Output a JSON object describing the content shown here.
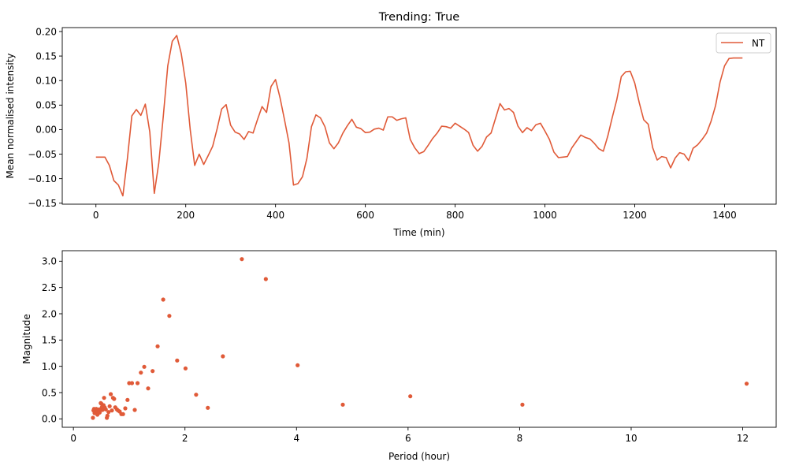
{
  "chart_data": [
    {
      "type": "line",
      "title": "Trending: True",
      "xlabel": "Time (min)",
      "ylabel": "Mean normalised intensity",
      "xlim": [
        -75,
        1515
      ],
      "ylim": [
        -0.152,
        0.208
      ],
      "xticks": [
        0,
        200,
        400,
        600,
        800,
        1000,
        1200,
        1400
      ],
      "yticks": [
        -0.15,
        -0.1,
        -0.05,
        0.0,
        0.05,
        0.1,
        0.15,
        0.2
      ],
      "ytick_labels": [
        "−0.15",
        "−0.10",
        "−0.05",
        "0.00",
        "0.05",
        "0.10",
        "0.15",
        "0.20"
      ],
      "legend": "upper right",
      "series": [
        {
          "name": "NT",
          "color": "#e05a38",
          "x": [
            0,
            10,
            20,
            30,
            40,
            50,
            60,
            70,
            80,
            90,
            100,
            110,
            120,
            130,
            140,
            150,
            160,
            170,
            180,
            190,
            200,
            210,
            220,
            230,
            240,
            250,
            260,
            270,
            280,
            290,
            300,
            310,
            320,
            330,
            340,
            350,
            360,
            370,
            380,
            390,
            400,
            410,
            420,
            430,
            440,
            450,
            460,
            470,
            480,
            490,
            500,
            510,
            520,
            530,
            540,
            550,
            560,
            570,
            580,
            590,
            600,
            610,
            620,
            630,
            640,
            650,
            660,
            670,
            680,
            690,
            700,
            710,
            720,
            730,
            740,
            750,
            760,
            770,
            780,
            790,
            800,
            810,
            820,
            830,
            840,
            850,
            860,
            870,
            880,
            890,
            900,
            910,
            920,
            930,
            940,
            950,
            960,
            970,
            980,
            990,
            1000,
            1010,
            1020,
            1030,
            1040,
            1050,
            1060,
            1070,
            1080,
            1090,
            1100,
            1110,
            1120,
            1130,
            1140,
            1150,
            1160,
            1170,
            1180,
            1190,
            1200,
            1210,
            1220,
            1230,
            1240,
            1250,
            1260,
            1270,
            1280,
            1290,
            1300,
            1310,
            1320,
            1330,
            1340,
            1350,
            1360,
            1370,
            1380,
            1390,
            1400,
            1410,
            1420,
            1430,
            1440
          ],
          "y": [
            -0.056,
            -0.056,
            -0.056,
            -0.073,
            -0.104,
            -0.113,
            -0.135,
            -0.06,
            0.028,
            0.041,
            0.029,
            0.052,
            -0.005,
            -0.13,
            -0.068,
            0.027,
            0.13,
            0.18,
            0.192,
            0.155,
            0.095,
            0.0,
            -0.073,
            -0.05,
            -0.071,
            -0.053,
            -0.034,
            0.002,
            0.042,
            0.051,
            0.009,
            -0.005,
            -0.009,
            -0.02,
            -0.004,
            -0.007,
            0.021,
            0.047,
            0.035,
            0.088,
            0.102,
            0.065,
            0.02,
            -0.027,
            -0.113,
            -0.11,
            -0.096,
            -0.058,
            0.006,
            0.03,
            0.024,
            0.006,
            -0.027,
            -0.039,
            -0.027,
            -0.007,
            0.008,
            0.021,
            0.005,
            0.002,
            -0.006,
            -0.005,
            0.001,
            0.003,
            -0.001,
            0.026,
            0.026,
            0.019,
            0.022,
            0.024,
            -0.02,
            -0.037,
            -0.049,
            -0.045,
            -0.032,
            -0.018,
            -0.007,
            0.007,
            0.006,
            0.003,
            0.013,
            0.007,
            0.001,
            -0.006,
            -0.032,
            -0.044,
            -0.034,
            -0.015,
            -0.007,
            0.023,
            0.053,
            0.04,
            0.043,
            0.035,
            0.007,
            -0.006,
            0.004,
            -0.002,
            0.01,
            0.013,
            -0.003,
            -0.02,
            -0.046,
            -0.057,
            -0.056,
            -0.055,
            -0.037,
            -0.024,
            -0.011,
            -0.016,
            -0.019,
            -0.028,
            -0.039,
            -0.044,
            -0.013,
            0.025,
            0.061,
            0.108,
            0.118,
            0.119,
            0.095,
            0.055,
            0.02,
            0.011,
            -0.037,
            -0.062,
            -0.055,
            -0.057,
            -0.078,
            -0.058,
            -0.047,
            -0.05,
            -0.063,
            -0.038,
            -0.031,
            -0.02,
            -0.007,
            0.017,
            0.049,
            0.097,
            0.13,
            0.145,
            0.146,
            0.146,
            0.146
          ]
        }
      ]
    },
    {
      "type": "scatter",
      "title": "",
      "xlabel": "Period (hour)",
      "ylabel": "Magnitude",
      "xlim": [
        -0.2,
        12.6
      ],
      "ylim": [
        -0.16,
        3.2
      ],
      "xticks": [
        0,
        2,
        4,
        6,
        8,
        10,
        12
      ],
      "yticks": [
        0.0,
        0.5,
        1.0,
        1.5,
        2.0,
        2.5,
        3.0
      ],
      "ytick_labels": [
        "0.0",
        "0.5",
        "1.0",
        "1.5",
        "2.0",
        "2.5",
        "3.0"
      ],
      "series": [
        {
          "color": "#e05a38",
          "points": [
            [
              12.07,
              0.67
            ],
            [
              8.05,
              0.27
            ],
            [
              6.04,
              0.43
            ],
            [
              4.83,
              0.27
            ],
            [
              4.02,
              1.02
            ],
            [
              3.45,
              2.66
            ],
            [
              3.02,
              3.04
            ],
            [
              2.68,
              1.19
            ],
            [
              2.41,
              0.21
            ],
            [
              2.2,
              0.46
            ],
            [
              2.01,
              0.96
            ],
            [
              1.86,
              1.11
            ],
            [
              1.72,
              1.96
            ],
            [
              1.61,
              2.27
            ],
            [
              1.51,
              1.38
            ],
            [
              1.42,
              0.91
            ],
            [
              1.34,
              0.58
            ],
            [
              1.27,
              0.99
            ],
            [
              1.21,
              0.88
            ],
            [
              1.15,
              0.68
            ],
            [
              1.1,
              0.17
            ],
            [
              1.05,
              0.68
            ],
            [
              1.0,
              0.68
            ],
            [
              0.97,
              0.36
            ],
            [
              0.93,
              0.2
            ],
            [
              0.89,
              0.09
            ],
            [
              0.86,
              0.09
            ],
            [
              0.83,
              0.14
            ],
            [
              0.8,
              0.16
            ],
            [
              0.78,
              0.18
            ],
            [
              0.75,
              0.22
            ],
            [
              0.73,
              0.38
            ],
            [
              0.71,
              0.4
            ],
            [
              0.69,
              0.16
            ],
            [
              0.67,
              0.47
            ],
            [
              0.65,
              0.24
            ],
            [
              0.63,
              0.13
            ],
            [
              0.61,
              0.06
            ],
            [
              0.6,
              0.02
            ],
            [
              0.58,
              0.18
            ],
            [
              0.56,
              0.22
            ],
            [
              0.55,
              0.4
            ],
            [
              0.54,
              0.26
            ],
            [
              0.52,
              0.17
            ],
            [
              0.51,
              0.22
            ],
            [
              0.5,
              0.29
            ],
            [
              0.49,
              0.3
            ],
            [
              0.47,
              0.12
            ],
            [
              0.46,
              0.18
            ],
            [
              0.45,
              0.14
            ],
            [
              0.44,
              0.1
            ],
            [
              0.43,
              0.08
            ],
            [
              0.42,
              0.16
            ],
            [
              0.41,
              0.19
            ],
            [
              0.4,
              0.12
            ],
            [
              0.39,
              0.15
            ],
            [
              0.38,
              0.11
            ],
            [
              0.37,
              0.19
            ],
            [
              0.36,
              0.16
            ],
            [
              0.35,
              0.02
            ]
          ]
        }
      ]
    }
  ]
}
